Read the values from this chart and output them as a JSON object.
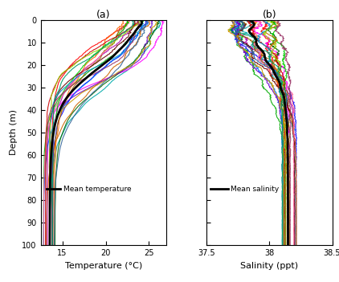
{
  "title_a": "(a)",
  "title_b": "(b)",
  "xlabel_a": "Temperature (°C)",
  "xlabel_b": "Salinity (ppt)",
  "ylabel": "Depth (m)",
  "legend_a": "Mean temperature",
  "legend_b": "Mean salinity",
  "xlim_a": [
    12.5,
    27.0
  ],
  "xlim_b": [
    37.5,
    38.5
  ],
  "ylim": [
    0,
    100
  ],
  "yticks": [
    0,
    10,
    20,
    30,
    40,
    50,
    60,
    70,
    80,
    90,
    100
  ],
  "xticks_a": [
    15,
    20,
    25
  ],
  "xticks_b": [
    37.5,
    38.0,
    38.5
  ],
  "n_profiles": 22,
  "background_color": "#ffffff",
  "mean_color": "#000000",
  "mean_linewidth": 2.0,
  "profile_linewidth": 0.8,
  "profile_alpha": 0.9
}
